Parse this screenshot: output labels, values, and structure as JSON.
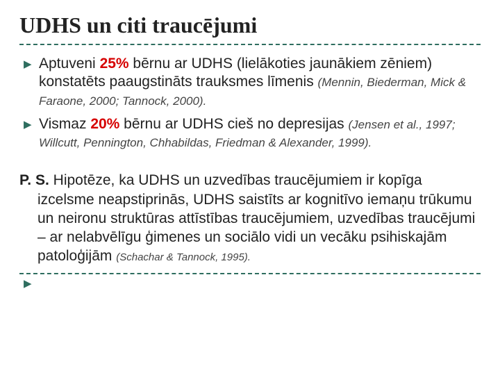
{
  "title": "UDHS un citi traucējumi",
  "colors": {
    "accent": "#2e6e5f",
    "highlight": "#d60000",
    "text": "#222222",
    "bg": "#ffffff"
  },
  "bullets": [
    {
      "pre": "Aptuveni ",
      "hl": "25%",
      "post": " bērnu ar UDHS (lielākoties jaunākiem zēniem) konstatēts paaugstināts trauksmes līmenis ",
      "cit": "(Mennin, Biederman, Mick & Faraone, 2000; Tannock, 2000)."
    },
    {
      "pre": "Vismaz ",
      "hl": "20%",
      "post": " bērnu ar UDHS cieš no depresijas ",
      "cit": "(Jensen et al., 1997; Willcutt, Pennington, Chhabildas, Friedman & Alexander, 1999)."
    }
  ],
  "ps": {
    "label": "P. S.",
    "body": " Hipotēze, ka UDHS un uzvedības traucējumiem ir kopīga izcelsme neapstiprinās, UDHS saistīts ar kognitīvo iemaņu trūkumu un neironu struktūras attīstības traucējumiem, uzvedības traucējumi – ar nelabvēlīgu ģimenes un sociālo vidi un vecāku psihiskajām patoloģijām ",
    "cit": "(Schachar & Tannock, 1995)."
  }
}
